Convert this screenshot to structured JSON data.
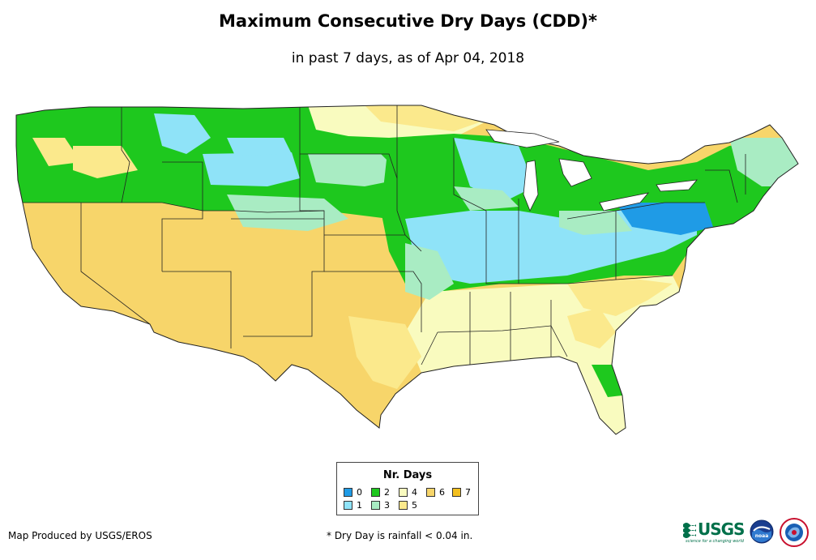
{
  "map": {
    "title": "Maximum Consecutive Dry Days (CDD)*",
    "subtitle": "in past 7 days, as of Apr 04, 2018",
    "region": "Contiguous United States"
  },
  "legend": {
    "title": "Nr. Days",
    "items": [
      {
        "label": "0",
        "color": "#1f9be6"
      },
      {
        "label": "1",
        "color": "#8fe3f8"
      },
      {
        "label": "2",
        "color": "#1ec81e"
      },
      {
        "label": "3",
        "color": "#a9ecc3"
      },
      {
        "label": "4",
        "color": "#f9fbbf"
      },
      {
        "label": "5",
        "color": "#fbe98c"
      },
      {
        "label": "6",
        "color": "#f7d56a"
      },
      {
        "label": "7",
        "color": "#f3bf1e"
      }
    ]
  },
  "footer": {
    "credit": "Map Produced by USGS/EROS",
    "note": "* Dry Day is rainfall < 0.04 in."
  },
  "logos": {
    "usgs_text": "USGS",
    "usgs_tagline": "science for a changing world",
    "noaa_text": "noaa"
  }
}
